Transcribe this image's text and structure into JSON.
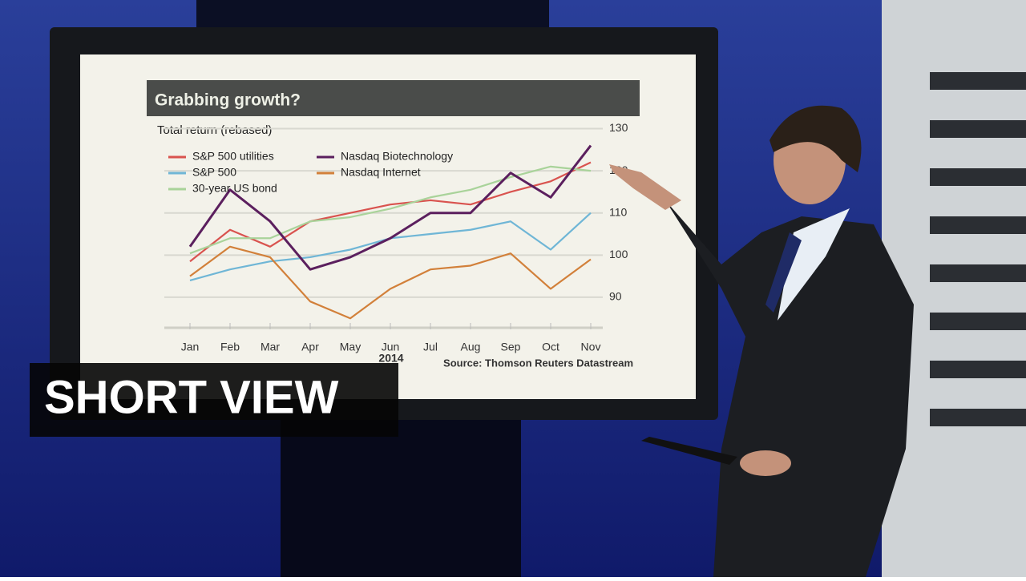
{
  "chart_data": {
    "type": "line",
    "title": "Grabbing growth?",
    "subtitle": "Total return (rebased)",
    "source": "Source: Thomson Reuters Datastream",
    "x_year_label": "2014",
    "categories": [
      "Jan",
      "Feb",
      "Mar",
      "Apr",
      "May",
      "Jun",
      "Jul",
      "Aug",
      "Sep",
      "Oct",
      "Nov"
    ],
    "series": [
      {
        "name": "S&P 500 utilities",
        "color": "#d9534f",
        "values": [
          98.5,
          106,
          102,
          108,
          110,
          112,
          113,
          112,
          115,
          117.5,
          122
        ]
      },
      {
        "name": "S&P 500",
        "color": "#6fb6d6",
        "values": [
          94,
          96.6,
          98.5,
          99.5,
          101.3,
          104,
          105,
          106,
          108,
          101.3,
          110
        ]
      },
      {
        "name": "30-year US bond",
        "color": "#a9d39a",
        "values": [
          100.4,
          104,
          104,
          108,
          109,
          111,
          113.7,
          115.5,
          118.5,
          121,
          120
        ]
      },
      {
        "name": "Nasdaq Biotechnology",
        "color": "#5b1f5e",
        "values": [
          102,
          115.5,
          108,
          96.6,
          99.5,
          104,
          110,
          110,
          119.5,
          113.7,
          126
        ]
      },
      {
        "name": "Nasdaq Internet",
        "color": "#d2803a",
        "values": [
          95,
          102,
          99.5,
          89,
          85,
          92,
          96.6,
          97.5,
          100.4,
          92,
          99
        ]
      }
    ],
    "ylim": [
      82,
      132
    ],
    "yticks": [
      90,
      100,
      110,
      120,
      130
    ],
    "grid": true
  },
  "overlay": {
    "caption": "SHORT VIEW"
  }
}
